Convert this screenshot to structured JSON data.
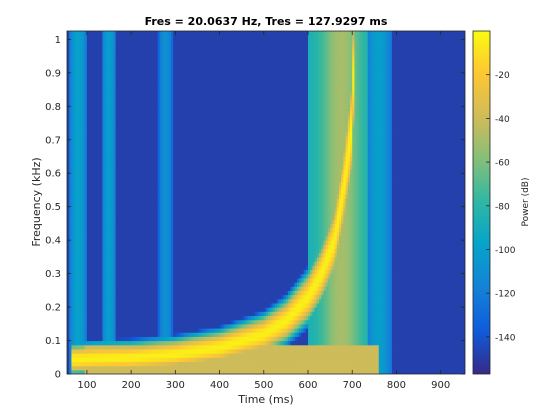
{
  "chart_data": {
    "type": "heatmap",
    "title": "Fres = 20.0637 Hz, Tres = 127.9297 ms",
    "xlabel": "Time (ms)",
    "ylabel": "Frequency (kHz)",
    "xlim": [
      55,
      955
    ],
    "ylim": [
      0,
      1.025
    ],
    "xticks": [
      100,
      200,
      300,
      400,
      500,
      600,
      700,
      800,
      900
    ],
    "xtick_labels": [
      "100",
      "200",
      "300",
      "400",
      "500",
      "600",
      "700",
      "800",
      "900"
    ],
    "yticks": [
      0,
      0.1,
      0.2,
      0.3,
      0.4,
      0.5,
      0.6,
      0.7,
      0.8,
      0.9,
      1
    ],
    "ytick_labels": [
      "0",
      "0.1",
      "0.2",
      "0.3",
      "0.4",
      "0.5",
      "0.6",
      "0.7",
      "0.8",
      "0.9",
      "1"
    ],
    "colorbar": {
      "label": "Power (dB)",
      "range": [
        -157,
        0
      ],
      "ticks": [
        -140,
        -120,
        -100,
        -80,
        -60,
        -40,
        -20
      ],
      "tick_labels": [
        "-140",
        "-120",
        "-100",
        "-80",
        "-60",
        "-40",
        "-20"
      ],
      "colormap": "parula"
    },
    "grid": false,
    "background_level_db": -148,
    "features": {
      "chirp_curve_time_ms_vs_freq_khz": [
        [
          70,
          0.045
        ],
        [
          120,
          0.048
        ],
        [
          200,
          0.05
        ],
        [
          300,
          0.06
        ],
        [
          400,
          0.08
        ],
        [
          500,
          0.12
        ],
        [
          550,
          0.16
        ],
        [
          600,
          0.23
        ],
        [
          630,
          0.3
        ],
        [
          660,
          0.4
        ],
        [
          680,
          0.55
        ],
        [
          700,
          0.75
        ],
        [
          705,
          1.02
        ]
      ],
      "vertical_bands_ms": [
        80,
        150,
        278,
        620,
        760
      ]
    }
  },
  "colors": {
    "parula_low": "#352a87",
    "parula_mid": "#21b2a4",
    "parula_high": "#f9fb0e",
    "axis": "#262626"
  }
}
